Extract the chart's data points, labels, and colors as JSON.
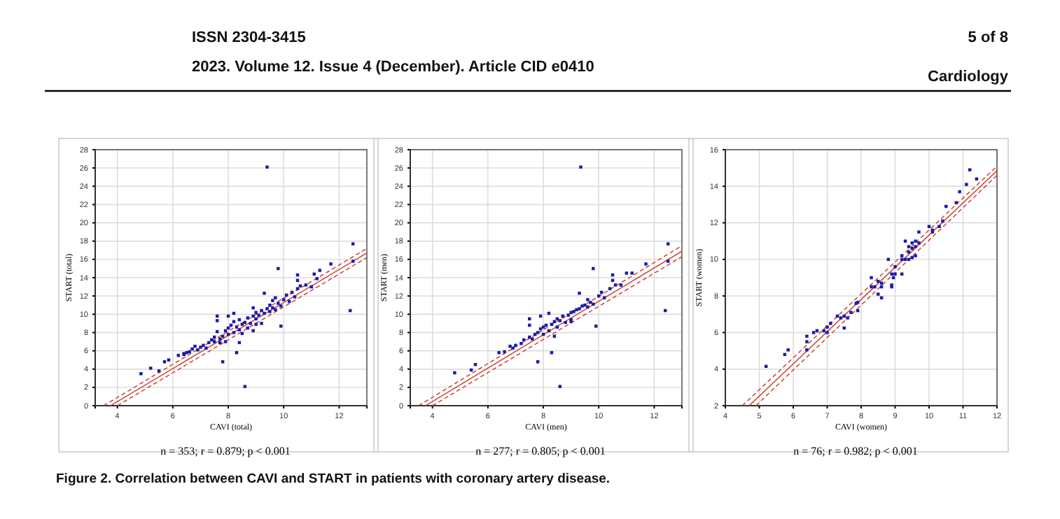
{
  "chart_data": [
    {
      "type": "scatter",
      "xlabel": "CAVI (total)",
      "ylabel": "START (total)",
      "xlim": [
        3.2,
        13
      ],
      "ylim": [
        0,
        28
      ],
      "xticks": [
        4,
        6,
        8,
        10,
        12
      ],
      "yticks": [
        0,
        2,
        4,
        6,
        8,
        10,
        12,
        14,
        16,
        18,
        20,
        22,
        24,
        26,
        28
      ],
      "grid": true,
      "marker": "square",
      "annotations": [
        "n = 353; r = 0.879; p < 0.001",
        "ISSN 2304-3415",
        "2023. Volume 12. Issue 4 (December). Article CID e0410",
        "5 of 8",
        "Cardiology",
        "Figure 2. Correlation between CAVI and START in patients with coronary artery disease."
      ],
      "series": [
        {
          "color": "#1c1ca8",
          "x": [
            9.4,
            8.6,
            12.4,
            12.5,
            12.5,
            9.8,
            4.85,
            5.2,
            5.5,
            5.7,
            5.85,
            6.4,
            6.5,
            7.8,
            8.3,
            9.9,
            11.7,
            11.3,
            11.1,
            10.5,
            10.5,
            9.3,
            7.6,
            8.0,
            8.2,
            6.2,
            6.4,
            6.6,
            6.7,
            6.8,
            6.9,
            7.0,
            7.1,
            7.2,
            7.3,
            7.4,
            7.5,
            7.5,
            7.6,
            7.7,
            7.7,
            7.8,
            7.9,
            7.9,
            8.0,
            8.0,
            8.1,
            8.2,
            8.2,
            8.3,
            8.4,
            8.4,
            8.5,
            8.5,
            8.6,
            8.7,
            8.7,
            8.8,
            8.9,
            8.9,
            9.0,
            9.0,
            9.1,
            9.2,
            9.2,
            9.3,
            9.4,
            9.5,
            9.5,
            9.6,
            9.6,
            9.7,
            9.8,
            9.9,
            10.0,
            10.1,
            10.2,
            10.3,
            10.4,
            10.5,
            10.6,
            10.8,
            11.0,
            11.2,
            7.6,
            8.4,
            9.0,
            8.9,
            9.7
          ],
          "values": [
            26.1,
            2.1,
            10.4,
            17.7,
            15.8,
            15,
            3.5,
            4.1,
            3.8,
            4.8,
            5,
            5.7,
            5.8,
            4.8,
            5.8,
            8.7,
            15.5,
            14.8,
            14.4,
            14.3,
            13.7,
            12.3,
            9.8,
            9.8,
            10.1,
            5.5,
            5.6,
            5.9,
            6.2,
            6.5,
            6.1,
            6.4,
            6.6,
            6.3,
            6.9,
            7.2,
            7.0,
            7.5,
            8.1,
            7.3,
            6.9,
            7.6,
            8.2,
            7.0,
            8.5,
            7.8,
            8.8,
            8.0,
            9.2,
            8.6,
            8.3,
            9.4,
            8.9,
            7.9,
            9.1,
            9.6,
            8.5,
            9.0,
            9.8,
            8.2,
            9.5,
            10.2,
            9.9,
            10.4,
            9.0,
            10.1,
            10.6,
            10.3,
            11.0,
            10.7,
            11.5,
            10.5,
            11.2,
            10.9,
            11.6,
            12.1,
            11.4,
            12.4,
            11.9,
            12.8,
            13.1,
            13.2,
            13.0,
            13.9,
            9.3,
            6.9,
            8.9,
            10.7,
            11.8
          ]
        },
        {
          "type": "line",
          "color": "#c0392b",
          "line_style": "solid",
          "marker": "none",
          "x": [
            3.75,
            13
          ],
          "values": [
            0,
            16.7
          ]
        },
        {
          "type": "line",
          "color": "#c0392b",
          "line_style": "dashed",
          "marker": "none",
          "x": [
            3.5,
            13
          ],
          "values": [
            0,
            17.2
          ]
        },
        {
          "type": "line",
          "color": "#c0392b",
          "line_style": "dashed",
          "marker": "none",
          "x": [
            4.0,
            13
          ],
          "values": [
            0,
            16.2
          ]
        }
      ]
    },
    {
      "type": "scatter",
      "xlabel": "CAVI (men)",
      "ylabel": "START (men)",
      "xlim": [
        3.2,
        13
      ],
      "ylim": [
        0,
        28
      ],
      "xticks": [
        4,
        6,
        8,
        10,
        12
      ],
      "yticks": [
        0,
        2,
        4,
        6,
        8,
        10,
        12,
        14,
        16,
        18,
        20,
        22,
        24,
        26,
        28
      ],
      "grid": true,
      "marker": "square",
      "annotations": [
        "n = 277; r = 0.805; p < 0.001"
      ],
      "series": [
        {
          "color": "#1c1ca8",
          "x": [
            9.35,
            8.6,
            12.4,
            12.5,
            12.5,
            9.8,
            4.8,
            5.4,
            5.55,
            6.4,
            6.6,
            7.8,
            8.3,
            9.9,
            11.7,
            11.2,
            11.0,
            10.5,
            10.5,
            9.3,
            7.5,
            7.9,
            8.2,
            6.8,
            6.9,
            7.0,
            7.2,
            7.3,
            7.5,
            7.6,
            7.7,
            7.8,
            7.9,
            8.0,
            8.0,
            8.1,
            8.2,
            8.3,
            8.4,
            8.5,
            8.5,
            8.6,
            8.7,
            8.8,
            8.9,
            9.0,
            9.0,
            9.1,
            9.2,
            9.3,
            9.4,
            9.5,
            9.6,
            9.6,
            9.7,
            9.8,
            10.0,
            10.1,
            10.2,
            10.4,
            10.6,
            10.8,
            7.5,
            8.4,
            9.0
          ],
          "values": [
            26.1,
            2.1,
            10.4,
            17.7,
            15.8,
            15,
            3.6,
            3.9,
            4.5,
            5.8,
            5.9,
            4.8,
            5.8,
            8.7,
            15.5,
            14.5,
            14.5,
            14.3,
            13.7,
            12.3,
            9.5,
            9.8,
            10.1,
            6.5,
            6.3,
            6.6,
            6.8,
            7.2,
            7.5,
            7.3,
            7.8,
            8.0,
            8.4,
            8.6,
            7.8,
            8.8,
            8.2,
            8.9,
            9.2,
            8.6,
            9.5,
            9.3,
            9.8,
            9.1,
            9.9,
            10.2,
            9.4,
            10.3,
            10.5,
            10.6,
            10.9,
            11.0,
            10.8,
            11.6,
            11.3,
            11.1,
            12.0,
            12.4,
            11.8,
            12.8,
            13.2,
            13.2,
            8.8,
            7.6,
            9.2
          ]
        },
        {
          "type": "line",
          "color": "#c0392b",
          "line_style": "solid",
          "marker": "none",
          "x": [
            3.75,
            13
          ],
          "values": [
            0,
            16.9
          ]
        },
        {
          "type": "line",
          "color": "#c0392b",
          "line_style": "dashed",
          "marker": "none",
          "x": [
            3.5,
            13
          ],
          "values": [
            0,
            17.5
          ]
        },
        {
          "type": "line",
          "color": "#c0392b",
          "line_style": "dashed",
          "marker": "none",
          "x": [
            4.0,
            13
          ],
          "values": [
            0,
            16.3
          ]
        }
      ]
    },
    {
      "type": "scatter",
      "xlabel": "CAVI (women)",
      "ylabel": "START (women)",
      "xlim": [
        4,
        12
      ],
      "ylim": [
        2,
        16
      ],
      "xticks": [
        4,
        5,
        6,
        7,
        8,
        9,
        10,
        11,
        12
      ],
      "yticks": [
        2,
        4,
        6,
        8,
        10,
        12,
        14,
        16
      ],
      "grid": true,
      "marker": "square",
      "annotations": [
        "n = 76; r = 0.982; p < 0.001"
      ],
      "series": [
        {
          "color": "#1c1ca8",
          "x": [
            5.2,
            5.75,
            5.85,
            6.4,
            6.4,
            6.4,
            6.6,
            6.7,
            6.9,
            7.0,
            7.0,
            7.1,
            7.3,
            7.4,
            7.5,
            7.5,
            7.6,
            7.7,
            7.85,
            7.9,
            7.9,
            8.3,
            8.3,
            8.4,
            8.5,
            8.5,
            8.6,
            8.6,
            8.6,
            8.8,
            8.9,
            8.9,
            8.9,
            8.95,
            9.0,
            9.0,
            9.2,
            9.2,
            9.2,
            9.3,
            9.3,
            9.4,
            9.4,
            9.4,
            9.5,
            9.5,
            9.5,
            9.6,
            9.6,
            9.6,
            9.7,
            9.7,
            10.0,
            10.1,
            10.1,
            10.3,
            10.4,
            10.5,
            10.8,
            10.9,
            11.1,
            11.2,
            11.4
          ],
          "values": [
            4.15,
            4.8,
            5.05,
            5.05,
            5.5,
            5.8,
            6.0,
            6.1,
            6.1,
            6.0,
            6.3,
            6.5,
            6.9,
            6.8,
            6.9,
            6.25,
            6.8,
            7.1,
            7.6,
            7.65,
            7.2,
            9.0,
            8.5,
            8.5,
            8.8,
            8.1,
            7.9,
            8.5,
            8.7,
            10.0,
            8.6,
            8.5,
            9.2,
            9.0,
            9.2,
            9.6,
            9.2,
            10.0,
            10.2,
            10.0,
            11.0,
            10.0,
            10.4,
            10.7,
            10.6,
            10.9,
            10.1,
            10.2,
            11.0,
            10.7,
            11.5,
            10.9,
            11.8,
            11.5,
            11.6,
            11.8,
            12.1,
            12.9,
            13.1,
            13.7,
            14.1,
            14.9,
            14.4
          ]
        },
        {
          "type": "line",
          "color": "#c0392b",
          "line_style": "solid",
          "marker": "none",
          "x": [
            4.7,
            12
          ],
          "values": [
            2,
            14.85
          ]
        },
        {
          "type": "line",
          "color": "#c0392b",
          "line_style": "dashed",
          "marker": "none",
          "x": [
            4.5,
            12
          ],
          "values": [
            2,
            15.1
          ]
        },
        {
          "type": "line",
          "color": "#c0392b",
          "line_style": "dashed",
          "marker": "none",
          "x": [
            4.9,
            12
          ],
          "values": [
            2,
            14.6
          ]
        }
      ]
    }
  ]
}
